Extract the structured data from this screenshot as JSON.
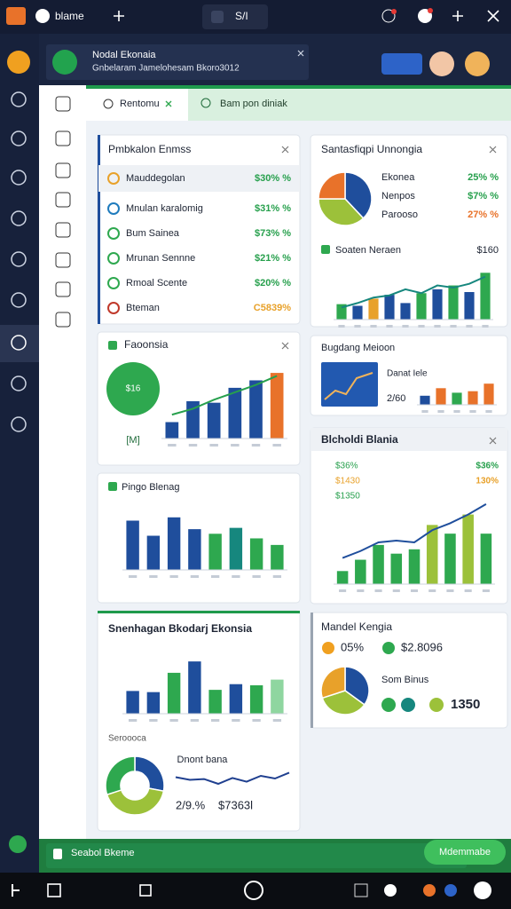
{
  "browser": {
    "tab": "blame",
    "tab2": "S/I"
  },
  "notification": {
    "title": "Nodal Ekonaia",
    "body": "Gnbelaram Jamelohesam Bkoro3012"
  },
  "tabs": [
    "Rentomu",
    "Bam pon diniak"
  ],
  "list_card": {
    "title": "Pmbkalon Enmss",
    "rows": [
      {
        "label": "Mauddegolan",
        "value": "$30% %"
      },
      {
        "label": "Mnulan karalomig",
        "value": "$31% %"
      },
      {
        "label": "Bum Sainea",
        "value": "$73% %"
      },
      {
        "label": "Mrunan Sennne",
        "value": "$21% %"
      },
      {
        "label": "Rmoal Scente",
        "value": "$20% %"
      },
      {
        "label": "Bteman",
        "value": "C5839%"
      }
    ]
  },
  "focus_card": {
    "title": "Faoonsia",
    "badge": "$16",
    "tag": "[M]",
    "chart": {
      "ylim": [
        0,
        100
      ],
      "values": [
        22,
        50,
        48,
        68,
        78,
        88
      ],
      "colors": [
        "#1f4e9c",
        "#1f4e9c",
        "#1f4e9c",
        "#1f4e9c",
        "#1f4e9c",
        "#e8722a"
      ],
      "line": {
        "values": [
          32,
          40,
          52,
          62,
          72,
          84
        ],
        "color": "#27a04d"
      }
    }
  },
  "pingo_card": {
    "title": "Pingo Blenag",
    "chart": {
      "ylim": [
        0,
        100
      ],
      "values": [
        75,
        52,
        80,
        62,
        55,
        64,
        48,
        38
      ],
      "colors": [
        "#1f4e9c",
        "#1f4e9c",
        "#1f4e9c",
        "#1f4e9c",
        "#2ea84f",
        "#16877e",
        "#2ea84f",
        "#2ea84f"
      ]
    }
  },
  "snen_card": {
    "title": "Snenhagan Bkodarj Ekonsia",
    "sub": "Seroooca",
    "donut_label": "Dnont bana",
    "stat1": "2/9.%",
    "stat2": "$7363l",
    "chart": {
      "ylim": [
        0,
        100
      ],
      "values": [
        40,
        38,
        72,
        92,
        42,
        52,
        50,
        60
      ],
      "colors": [
        "#1f4e9c",
        "#1f4e9c",
        "#2ea84f",
        "#1f4e9c",
        "#2ea84f",
        "#1f4e9c",
        "#2ea84f",
        "#8fd6a0"
      ]
    },
    "donut": {
      "values": [
        28,
        42,
        30
      ],
      "colors": [
        "#1f4e9c",
        "#9cc13a",
        "#2ea84f"
      ]
    },
    "spark": {
      "ylim": [
        0,
        100
      ],
      "values": [
        55,
        45,
        48,
        30,
        52,
        38,
        60,
        50,
        72
      ],
      "color": "#1f3f8f"
    }
  },
  "santa_card": {
    "title": "Santasfiqpi Unnongia",
    "pie": {
      "values": [
        38,
        37,
        25
      ],
      "colors": [
        "#1f4e9c",
        "#9cc13a",
        "#e8722a"
      ]
    },
    "legend": [
      {
        "label": "Ekonea",
        "value": "25% %",
        "color": "#27a04d"
      },
      {
        "label": "Nenpos",
        "value": "$7% %",
        "color": "#27a04d"
      },
      {
        "label": "Parooso",
        "value": "27% %",
        "color": "#e8722a"
      }
    ],
    "sub": "Soaten Neraen",
    "sub_value": "$160",
    "chart": {
      "ylim": [
        0,
        100
      ],
      "values": [
        28,
        25,
        38,
        45,
        30,
        48,
        55,
        62,
        50,
        85
      ],
      "colors": [
        "#2ea84f",
        "#1f4e9c",
        "#e8a12a",
        "#1f4e9c",
        "#1f4e9c",
        "#2ea84f",
        "#1f4e9c",
        "#2ea84f",
        "#1f4e9c",
        "#2ea84f"
      ],
      "line": {
        "values": [
          22,
          30,
          40,
          44,
          55,
          48,
          62,
          58,
          65,
          78
        ],
        "color": "#16877e"
      }
    }
  },
  "bugdang_card": {
    "title": "Bugdang Meioon",
    "label": "Danat Iele",
    "value": "2/60",
    "chart": {
      "ylim": [
        0,
        100
      ],
      "values": [
        30,
        55,
        40,
        45,
        70
      ],
      "colors": [
        "#1f4e9c",
        "#e8722a",
        "#2ea84f",
        "#e8722a",
        "#e8722a"
      ]
    }
  },
  "blcholdi_card": {
    "title": "Blcholdi Blania",
    "rows": [
      "$36%",
      "$1430",
      "$1350"
    ],
    "row_values": [
      "$36%",
      "130%"
    ],
    "chart": {
      "ylim": [
        0,
        100
      ],
      "values": [
        15,
        28,
        45,
        35,
        40,
        68,
        58,
        80,
        58
      ],
      "colors": [
        "#2ea84f",
        "#2ea84f",
        "#2ea84f",
        "#2ea84f",
        "#2ea84f",
        "#9cc13a",
        "#2ea84f",
        "#9cc13a",
        "#2ea84f"
      ],
      "line": {
        "values": [
          30,
          38,
          48,
          50,
          48,
          62,
          70,
          80,
          92
        ],
        "color": "#1f4e9c"
      }
    }
  },
  "mandel_card": {
    "title": "Mandel Kengia",
    "stat1": "05%",
    "stat2": "$2.8096",
    "label": "Som Binus",
    "value": "1350",
    "pie": {
      "values": [
        35,
        35,
        30
      ],
      "colors": [
        "#1f4e9c",
        "#9cc13a",
        "#e8a12a"
      ]
    }
  },
  "footer": {
    "label": "Seabol Bkeme",
    "button": "Mdemmabe"
  }
}
